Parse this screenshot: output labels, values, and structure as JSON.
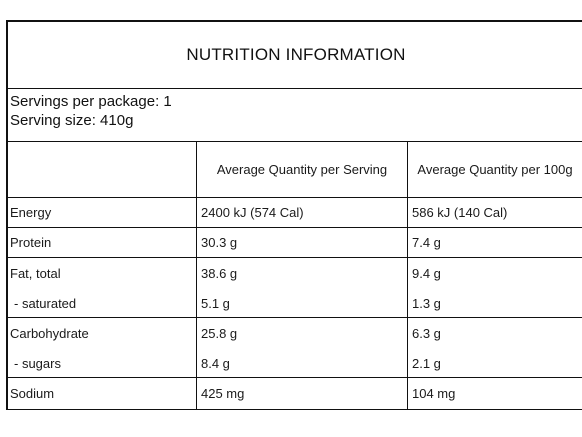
{
  "panel": {
    "title": "NUTRITION INFORMATION",
    "servings_per_package": "Servings per package: 1",
    "serving_size": "Serving size: 410g"
  },
  "table": {
    "headers": {
      "per_serving": "Average Quantity per Serving",
      "per_100g": "Average Quantity per 100g"
    },
    "rows": [
      {
        "label": "Energy",
        "per_serving": "2400 kJ (574 Cal)",
        "per_100g": "586 kJ (140 Cal)"
      },
      {
        "label": "Protein",
        "per_serving": "30.3 g",
        "per_100g": "7.4 g"
      },
      {
        "label": "Fat, total",
        "per_serving": "38.6 g",
        "per_100g": "9.4 g",
        "sub_label": "- saturated",
        "sub_per_serving": "5.1 g",
        "sub_per_100g": "1.3 g"
      },
      {
        "label": "Carbohydrate",
        "per_serving": "25.8 g",
        "per_100g": "6.3 g",
        "sub_label": "- sugars",
        "sub_per_serving": "8.4 g",
        "sub_per_100g": "2.1 g"
      },
      {
        "label": "Sodium",
        "per_serving": "425 mg",
        "per_100g": "104 mg"
      }
    ]
  }
}
